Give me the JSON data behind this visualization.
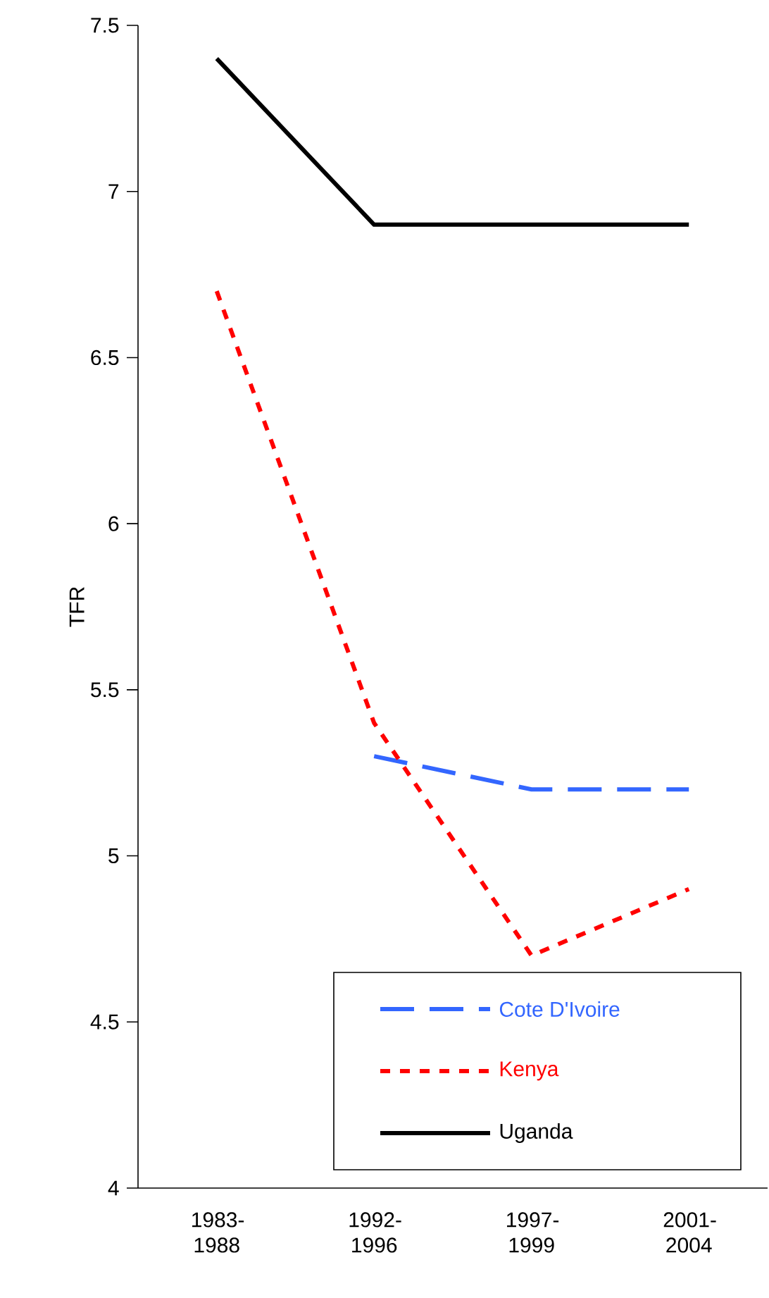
{
  "chart_data": {
    "type": "line",
    "ylabel": "TFR",
    "categories": [
      "1983-1988",
      "1992-1996",
      "1997-1999",
      "2001-2004"
    ],
    "ylim": [
      4,
      7.5
    ],
    "yticks": [
      4,
      4.5,
      5,
      5.5,
      6,
      6.5,
      7,
      7.5
    ],
    "grid": false,
    "legend": "bottom right",
    "marker": "none",
    "series": [
      {
        "name": "Cote D'Ivoire",
        "color": "#3366ff",
        "line_style": "dashed",
        "values": [
          null,
          5.3,
          5.2,
          5.2
        ]
      },
      {
        "name": "Kenya",
        "color": "#ff0000",
        "line_style": "dotted",
        "values": [
          6.7,
          5.4,
          4.7,
          4.9
        ]
      },
      {
        "name": "Uganda",
        "color": "#000000",
        "line_style": "solid",
        "values": [
          7.4,
          6.9,
          6.9,
          6.9
        ]
      }
    ]
  }
}
